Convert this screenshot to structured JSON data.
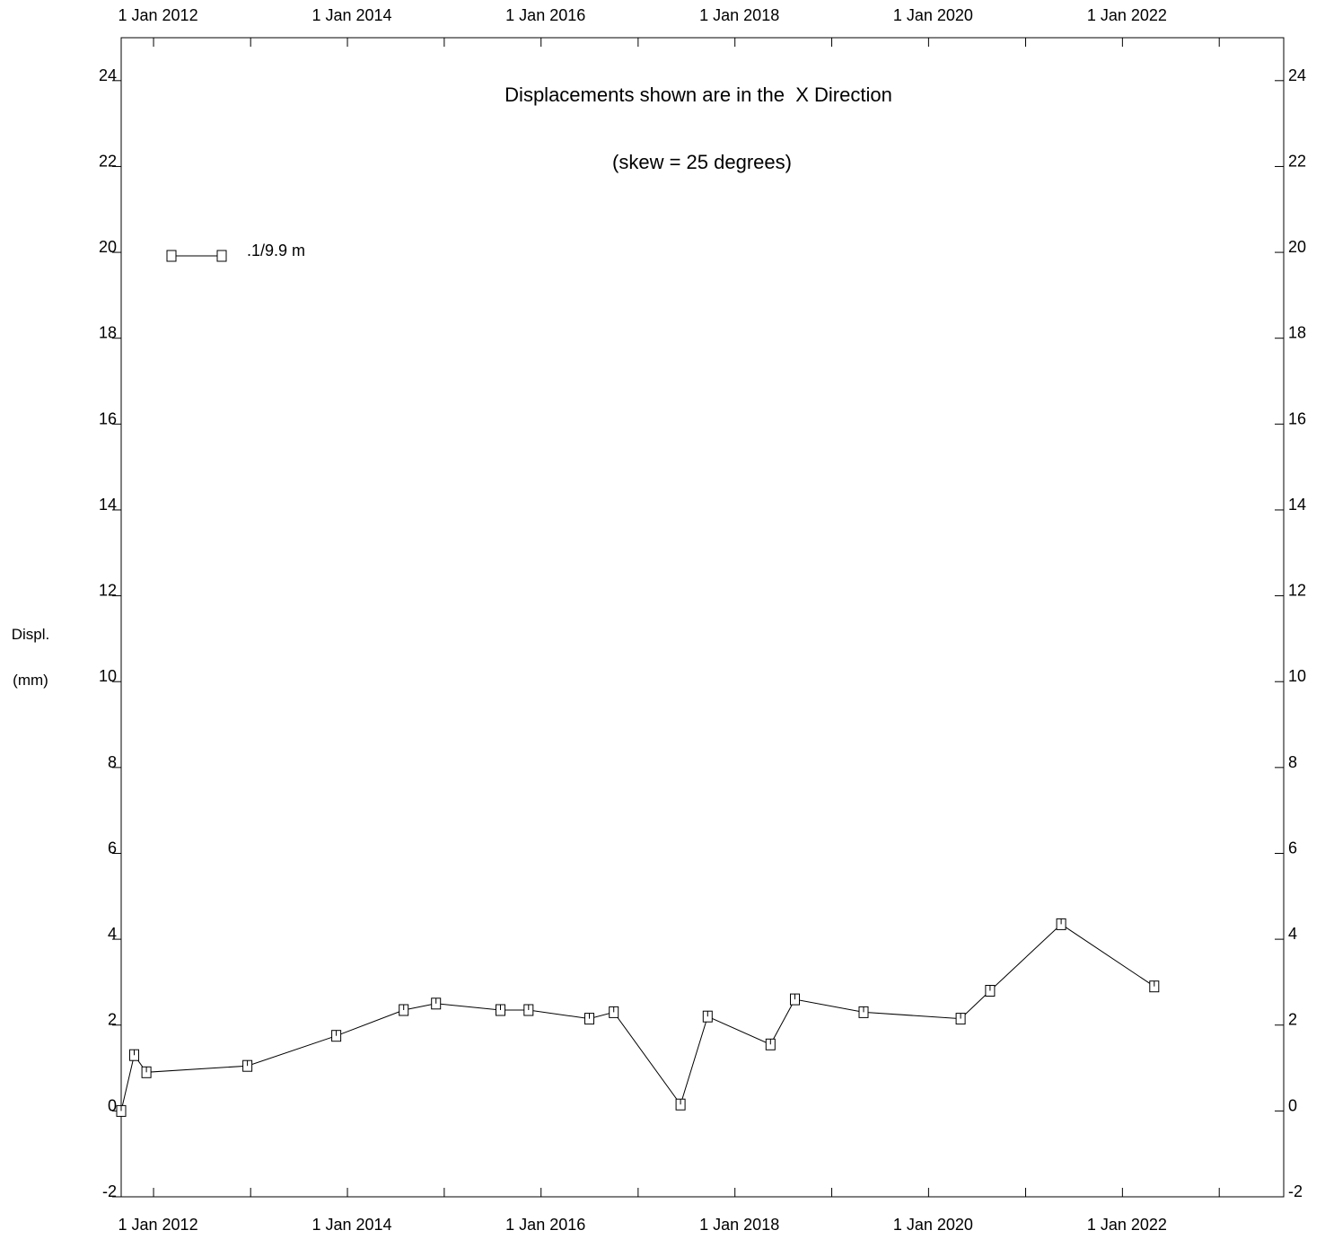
{
  "chart_data": {
    "type": "line",
    "title": "Displacements shown are in the  X Direction",
    "subtitle": "(skew = 25 degrees)",
    "ylabel_line1": "Displ.",
    "ylabel_line2": "(mm)",
    "xlabel": "",
    "xlim": [
      "2011-09-01",
      "2023-09-01"
    ],
    "ylim": [
      -2,
      25
    ],
    "y_ticks": [
      -2,
      0,
      2,
      4,
      6,
      8,
      10,
      12,
      14,
      16,
      18,
      20,
      22,
      24
    ],
    "x_tick_labels": [
      "1 Jan 2012",
      "1 Jan 2014",
      "1 Jan 2016",
      "1 Jan 2018",
      "1 Jan 2020",
      "1 Jan 2022"
    ],
    "x_tick_dates": [
      "2012-01-01",
      "2014-01-01",
      "2016-01-01",
      "2018-01-01",
      "2020-01-01",
      "2022-01-01"
    ],
    "x_minor_tick_dates": [
      "2013-01-01",
      "2015-01-01",
      "2017-01-01",
      "2019-01-01",
      "2021-01-01",
      "2023-01-01"
    ],
    "grid": false,
    "legend_position": "top-left",
    "series": [
      {
        "name": ".1/9.9 m",
        "marker": "square",
        "x": [
          "2011-09-01",
          "2011-10-20",
          "2011-12-05",
          "2012-12-20",
          "2013-11-20",
          "2014-08-01",
          "2014-12-01",
          "2015-08-01",
          "2015-11-15",
          "2016-07-01",
          "2016-10-01",
          "2017-06-10",
          "2017-09-20",
          "2018-05-15",
          "2018-08-15",
          "2019-05-01",
          "2020-05-01",
          "2020-08-20",
          "2021-05-15",
          "2022-05-01"
        ],
        "y": [
          0.0,
          1.3,
          0.9,
          1.05,
          1.75,
          2.35,
          2.5,
          2.35,
          2.35,
          2.15,
          2.3,
          0.15,
          2.2,
          1.55,
          2.6,
          2.3,
          2.15,
          2.8,
          4.35,
          2.9
        ]
      }
    ]
  }
}
